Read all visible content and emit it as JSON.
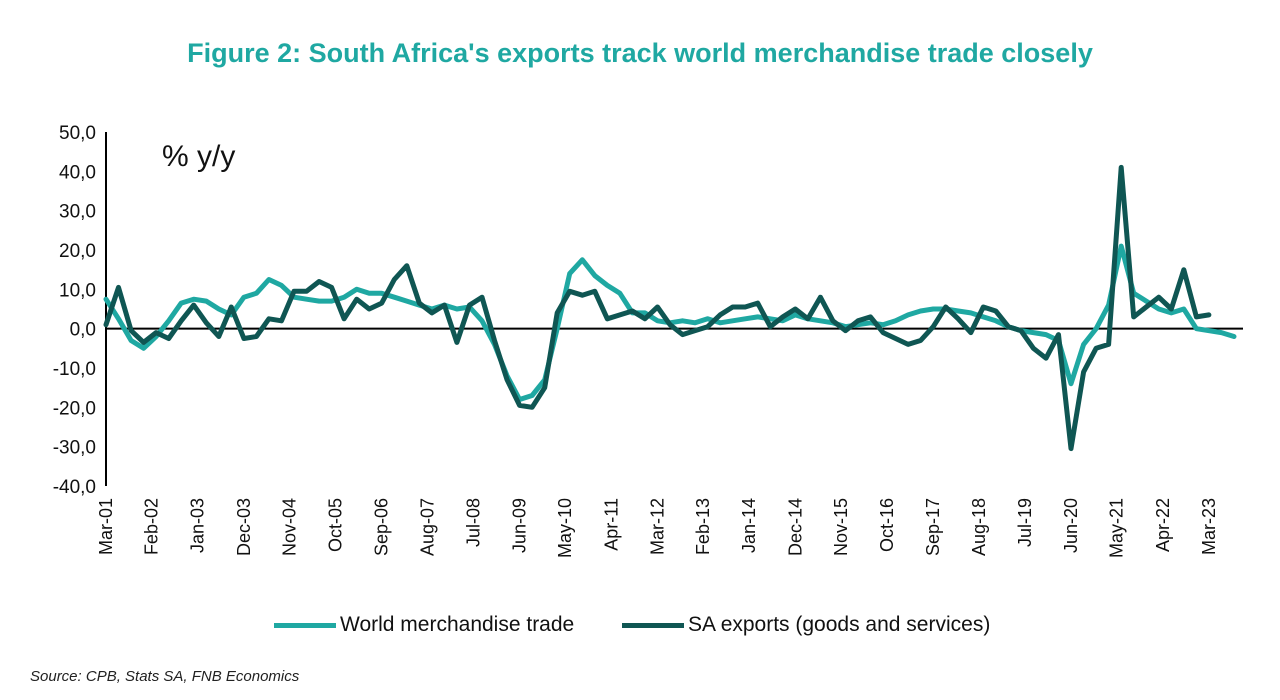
{
  "chart_data": {
    "type": "line",
    "title": "Figure 2: South Africa's exports track world merchandise trade closely",
    "unit_label": "% y/y",
    "source": "Source: CPB, Stats SA, FNB Economics",
    "ylim": [
      -40,
      50
    ],
    "yticks": [
      "50,0",
      "40,0",
      "30,0",
      "20,0",
      "10,0",
      "0,0",
      "-10,0",
      "-20,0",
      "-30,0",
      "-40,0"
    ],
    "xlim": [
      2001.17,
      2023.85
    ],
    "x_tick_labels": [
      {
        "x": 2001.17,
        "label": "Mar-01"
      },
      {
        "x": 2002.08,
        "label": "Feb-02"
      },
      {
        "x": 2003.0,
        "label": "Jan-03"
      },
      {
        "x": 2003.92,
        "label": "Dec-03"
      },
      {
        "x": 2004.83,
        "label": "Nov-04"
      },
      {
        "x": 2005.75,
        "label": "Oct-05"
      },
      {
        "x": 2006.67,
        "label": "Sep-06"
      },
      {
        "x": 2007.58,
        "label": "Aug-07"
      },
      {
        "x": 2008.5,
        "label": "Jul-08"
      },
      {
        "x": 2009.42,
        "label": "Jun-09"
      },
      {
        "x": 2010.33,
        "label": "May-10"
      },
      {
        "x": 2011.25,
        "label": "Apr-11"
      },
      {
        "x": 2012.17,
        "label": "Mar-12"
      },
      {
        "x": 2013.08,
        "label": "Feb-13"
      },
      {
        "x": 2014.0,
        "label": "Jan-14"
      },
      {
        "x": 2014.92,
        "label": "Dec-14"
      },
      {
        "x": 2015.83,
        "label": "Nov-15"
      },
      {
        "x": 2016.75,
        "label": "Oct-16"
      },
      {
        "x": 2017.67,
        "label": "Sep-17"
      },
      {
        "x": 2018.58,
        "label": "Aug-18"
      },
      {
        "x": 2019.5,
        "label": "Jul-19"
      },
      {
        "x": 2020.42,
        "label": "Jun-20"
      },
      {
        "x": 2021.33,
        "label": "May-21"
      },
      {
        "x": 2022.25,
        "label": "Apr-22"
      },
      {
        "x": 2023.17,
        "label": "Mar-23"
      }
    ],
    "legend_position": "bottom",
    "series": [
      {
        "name": "World merchandise trade",
        "color": "#1fa8a2",
        "points": [
          [
            2001.17,
            7.5
          ],
          [
            2001.42,
            2.5
          ],
          [
            2001.67,
            -3.0
          ],
          [
            2001.92,
            -5.0
          ],
          [
            2002.17,
            -2.0
          ],
          [
            2002.42,
            2.0
          ],
          [
            2002.67,
            6.5
          ],
          [
            2002.92,
            7.5
          ],
          [
            2003.17,
            7.0
          ],
          [
            2003.42,
            5.0
          ],
          [
            2003.67,
            3.5
          ],
          [
            2003.92,
            8.0
          ],
          [
            2004.17,
            9.0
          ],
          [
            2004.42,
            12.5
          ],
          [
            2004.67,
            11.0
          ],
          [
            2004.92,
            8.0
          ],
          [
            2005.17,
            7.5
          ],
          [
            2005.42,
            7.0
          ],
          [
            2005.67,
            7.0
          ],
          [
            2005.92,
            8.0
          ],
          [
            2006.17,
            10.0
          ],
          [
            2006.42,
            9.0
          ],
          [
            2006.67,
            9.0
          ],
          [
            2006.92,
            8.0
          ],
          [
            2007.17,
            7.0
          ],
          [
            2007.42,
            6.0
          ],
          [
            2007.67,
            5.0
          ],
          [
            2007.92,
            6.0
          ],
          [
            2008.17,
            5.0
          ],
          [
            2008.42,
            5.5
          ],
          [
            2008.67,
            2.0
          ],
          [
            2008.92,
            -4.0
          ],
          [
            2009.17,
            -12.0
          ],
          [
            2009.42,
            -18.0
          ],
          [
            2009.67,
            -17.0
          ],
          [
            2009.92,
            -13.0
          ],
          [
            2010.17,
            0.0
          ],
          [
            2010.42,
            14.0
          ],
          [
            2010.67,
            17.5
          ],
          [
            2010.92,
            13.5
          ],
          [
            2011.17,
            11.0
          ],
          [
            2011.42,
            9.0
          ],
          [
            2011.67,
            4.0
          ],
          [
            2011.92,
            4.0
          ],
          [
            2012.17,
            2.0
          ],
          [
            2012.42,
            1.5
          ],
          [
            2012.67,
            2.0
          ],
          [
            2012.92,
            1.5
          ],
          [
            2013.17,
            2.5
          ],
          [
            2013.42,
            1.5
          ],
          [
            2013.67,
            2.0
          ],
          [
            2013.92,
            2.5
          ],
          [
            2014.17,
            3.0
          ],
          [
            2014.42,
            2.5
          ],
          [
            2014.67,
            2.0
          ],
          [
            2014.92,
            3.5
          ],
          [
            2015.17,
            2.5
          ],
          [
            2015.42,
            2.0
          ],
          [
            2015.67,
            1.5
          ],
          [
            2015.92,
            0.5
          ],
          [
            2016.17,
            1.0
          ],
          [
            2016.42,
            1.5
          ],
          [
            2016.67,
            1.0
          ],
          [
            2016.92,
            2.0
          ],
          [
            2017.17,
            3.5
          ],
          [
            2017.42,
            4.5
          ],
          [
            2017.67,
            5.0
          ],
          [
            2017.92,
            5.0
          ],
          [
            2018.17,
            4.5
          ],
          [
            2018.42,
            4.0
          ],
          [
            2018.67,
            3.0
          ],
          [
            2018.92,
            2.0
          ],
          [
            2019.17,
            0.5
          ],
          [
            2019.42,
            -0.5
          ],
          [
            2019.67,
            -1.0
          ],
          [
            2019.92,
            -1.5
          ],
          [
            2020.17,
            -3.0
          ],
          [
            2020.42,
            -14.0
          ],
          [
            2020.67,
            -4.0
          ],
          [
            2020.92,
            0.0
          ],
          [
            2021.17,
            6.0
          ],
          [
            2021.42,
            21.0
          ],
          [
            2021.67,
            9.0
          ],
          [
            2021.92,
            7.0
          ],
          [
            2022.17,
            5.0
          ],
          [
            2022.42,
            4.0
          ],
          [
            2022.67,
            5.0
          ],
          [
            2022.92,
            0.0
          ],
          [
            2023.17,
            -0.5
          ],
          [
            2023.42,
            -1.0
          ],
          [
            2023.67,
            -2.0
          ]
        ]
      },
      {
        "name": "SA exports (goods and services)",
        "color": "#0f5653",
        "points": [
          [
            2001.17,
            1.0
          ],
          [
            2001.42,
            10.5
          ],
          [
            2001.67,
            -0.5
          ],
          [
            2001.92,
            -3.5
          ],
          [
            2002.17,
            -1.0
          ],
          [
            2002.42,
            -2.5
          ],
          [
            2002.67,
            2.0
          ],
          [
            2002.92,
            6.0
          ],
          [
            2003.17,
            1.5
          ],
          [
            2003.42,
            -2.0
          ],
          [
            2003.67,
            5.5
          ],
          [
            2003.92,
            -2.5
          ],
          [
            2004.17,
            -2.0
          ],
          [
            2004.42,
            2.5
          ],
          [
            2004.67,
            2.0
          ],
          [
            2004.92,
            9.5
          ],
          [
            2005.17,
            9.5
          ],
          [
            2005.42,
            12.0
          ],
          [
            2005.67,
            10.5
          ],
          [
            2005.92,
            2.5
          ],
          [
            2006.17,
            7.5
          ],
          [
            2006.42,
            5.0
          ],
          [
            2006.67,
            6.5
          ],
          [
            2006.92,
            12.5
          ],
          [
            2007.17,
            16.0
          ],
          [
            2007.42,
            6.5
          ],
          [
            2007.67,
            4.0
          ],
          [
            2007.92,
            6.0
          ],
          [
            2008.17,
            -3.5
          ],
          [
            2008.42,
            6.0
          ],
          [
            2008.67,
            8.0
          ],
          [
            2008.92,
            -3.0
          ],
          [
            2009.17,
            -13.0
          ],
          [
            2009.42,
            -19.5
          ],
          [
            2009.67,
            -20.0
          ],
          [
            2009.92,
            -15.0
          ],
          [
            2010.17,
            4.0
          ],
          [
            2010.42,
            9.5
          ],
          [
            2010.67,
            8.5
          ],
          [
            2010.92,
            9.5
          ],
          [
            2011.17,
            2.5
          ],
          [
            2011.42,
            3.5
          ],
          [
            2011.67,
            4.5
          ],
          [
            2011.92,
            2.5
          ],
          [
            2012.17,
            5.5
          ],
          [
            2012.42,
            1.0
          ],
          [
            2012.67,
            -1.5
          ],
          [
            2012.92,
            -0.5
          ],
          [
            2013.17,
            0.5
          ],
          [
            2013.42,
            3.5
          ],
          [
            2013.67,
            5.5
          ],
          [
            2013.92,
            5.5
          ],
          [
            2014.17,
            6.5
          ],
          [
            2014.42,
            0.5
          ],
          [
            2014.67,
            3.0
          ],
          [
            2014.92,
            5.0
          ],
          [
            2015.17,
            2.5
          ],
          [
            2015.42,
            8.0
          ],
          [
            2015.67,
            2.0
          ],
          [
            2015.92,
            -0.5
          ],
          [
            2016.17,
            2.0
          ],
          [
            2016.42,
            3.0
          ],
          [
            2016.67,
            -1.0
          ],
          [
            2016.92,
            -2.5
          ],
          [
            2017.17,
            -4.0
          ],
          [
            2017.42,
            -3.0
          ],
          [
            2017.67,
            0.5
          ],
          [
            2017.92,
            5.5
          ],
          [
            2018.17,
            2.5
          ],
          [
            2018.42,
            -1.0
          ],
          [
            2018.67,
            5.5
          ],
          [
            2018.92,
            4.5
          ],
          [
            2019.17,
            0.5
          ],
          [
            2019.42,
            -0.5
          ],
          [
            2019.67,
            -5.0
          ],
          [
            2019.92,
            -7.5
          ],
          [
            2020.17,
            -1.5
          ],
          [
            2020.42,
            -30.5
          ],
          [
            2020.67,
            -11.0
          ],
          [
            2020.92,
            -5.0
          ],
          [
            2021.17,
            -4.0
          ],
          [
            2021.42,
            41.0
          ],
          [
            2021.67,
            3.0
          ],
          [
            2021.92,
            5.5
          ],
          [
            2022.17,
            8.0
          ],
          [
            2022.42,
            5.0
          ],
          [
            2022.67,
            15.0
          ],
          [
            2022.92,
            3.0
          ],
          [
            2023.17,
            3.5
          ]
        ]
      }
    ]
  }
}
